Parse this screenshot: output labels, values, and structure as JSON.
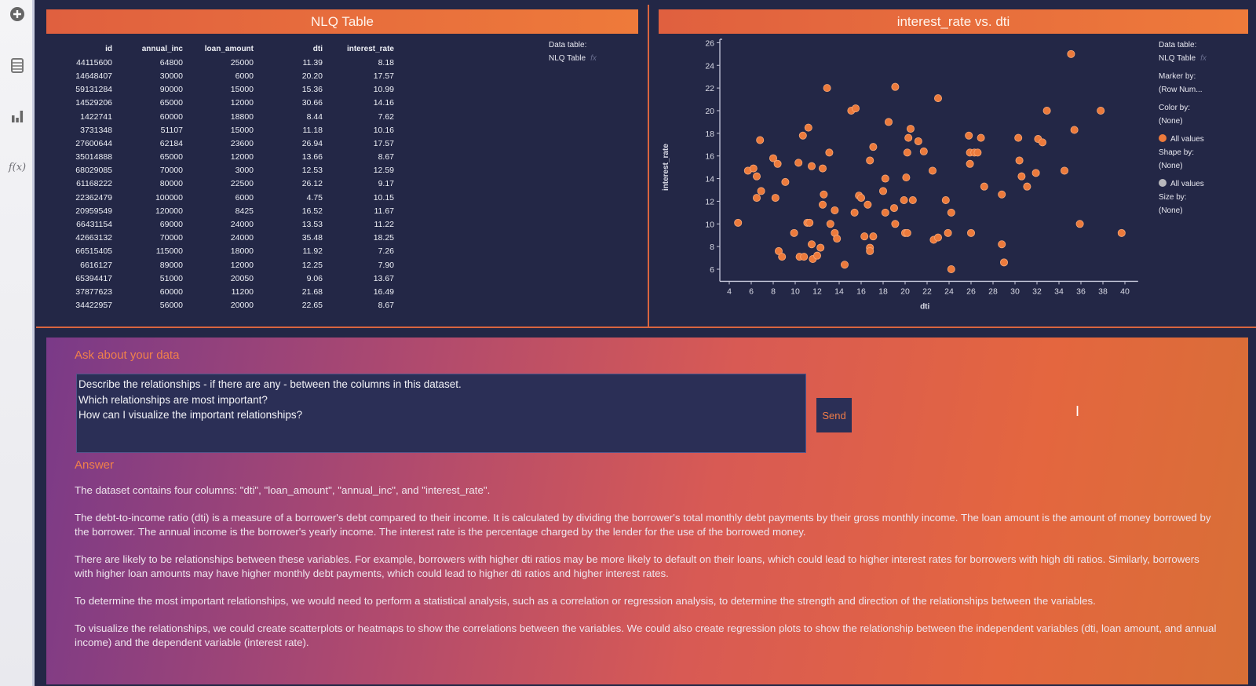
{
  "sidebar": {
    "items": [
      {
        "icon": "add-circle-icon"
      },
      {
        "icon": "table-icon"
      },
      {
        "icon": "bar-chart-icon"
      },
      {
        "icon": "function-icon",
        "label": "f(x)"
      }
    ]
  },
  "table_panel": {
    "title": "NLQ Table",
    "data_table_label": "Data table:",
    "data_table_value": "NLQ Table",
    "fx": "fx",
    "columns": [
      "id",
      "annual_inc",
      "loan_amount",
      "dti",
      "interest_rate"
    ],
    "rows": [
      [
        "44115600",
        "64800",
        "25000",
        "11.39",
        "8.18"
      ],
      [
        "14648407",
        "30000",
        "6000",
        "20.20",
        "17.57"
      ],
      [
        "59131284",
        "90000",
        "15000",
        "15.36",
        "10.99"
      ],
      [
        "14529206",
        "65000",
        "12000",
        "30.66",
        "14.16"
      ],
      [
        "1422741",
        "60000",
        "18800",
        "8.44",
        "7.62"
      ],
      [
        "3731348",
        "51107",
        "15000",
        "11.18",
        "10.16"
      ],
      [
        "27600644",
        "62184",
        "23600",
        "26.94",
        "17.57"
      ],
      [
        "35014888",
        "65000",
        "12000",
        "13.66",
        "8.67"
      ],
      [
        "68029085",
        "70000",
        "3000",
        "12.53",
        "12.59"
      ],
      [
        "61168222",
        "80000",
        "22500",
        "26.12",
        "9.17"
      ],
      [
        "22362479",
        "100000",
        "6000",
        "4.75",
        "10.15"
      ],
      [
        "20959549",
        "120000",
        "8425",
        "16.52",
        "11.67"
      ],
      [
        "66431154",
        "69000",
        "24000",
        "13.53",
        "11.22"
      ],
      [
        "42663132",
        "70000",
        "24000",
        "35.48",
        "18.25"
      ],
      [
        "66515405",
        "115000",
        "18000",
        "11.92",
        "7.26"
      ],
      [
        "6616127",
        "89000",
        "12000",
        "12.25",
        "7.90"
      ],
      [
        "65394417",
        "51000",
        "20050",
        "9.06",
        "13.67"
      ],
      [
        "37877623",
        "60000",
        "11200",
        "21.68",
        "16.49"
      ],
      [
        "34422957",
        "56000",
        "20000",
        "22.65",
        "8.67"
      ]
    ]
  },
  "chart_panel": {
    "title": "interest_rate vs. dti",
    "props": {
      "data_table_label": "Data table:",
      "data_table_value": "NLQ Table",
      "fx": "fx",
      "marker_label": "Marker by:",
      "marker_value": "(Row Num...",
      "color_label": "Color by:",
      "color_value": "(None)",
      "color_legend": "All values",
      "shape_label": "Shape by:",
      "shape_value": "(None)",
      "shape_legend": "All values",
      "size_label": "Size by:",
      "size_value": "(None)"
    }
  },
  "chart_data": {
    "type": "scatter",
    "title": "interest_rate vs. dti",
    "xlabel": "dti",
    "ylabel": "interest_rate",
    "xlim": [
      3,
      41
    ],
    "ylim": [
      5,
      26.5
    ],
    "xticks": [
      4,
      6,
      8,
      10,
      12,
      14,
      16,
      18,
      20,
      22,
      24,
      26,
      28,
      30,
      32,
      34,
      36,
      38,
      40
    ],
    "yticks": [
      6,
      8,
      10,
      12,
      14,
      16,
      18,
      20,
      22,
      24,
      26
    ],
    "marker_color": "#ec7a3c",
    "grid": false,
    "points": [
      [
        4.8,
        10.1
      ],
      [
        5.7,
        14.7
      ],
      [
        6.2,
        14.9
      ],
      [
        6.5,
        14.2
      ],
      [
        6.8,
        17.4
      ],
      [
        6.9,
        12.9
      ],
      [
        6.5,
        12.3
      ],
      [
        8.0,
        15.8
      ],
      [
        8.4,
        15.3
      ],
      [
        8.2,
        12.3
      ],
      [
        9.1,
        13.7
      ],
      [
        8.5,
        7.6
      ],
      [
        8.8,
        7.1
      ],
      [
        9.9,
        9.2
      ],
      [
        10.3,
        15.4
      ],
      [
        10.7,
        17.8
      ],
      [
        11.2,
        18.5
      ],
      [
        11.5,
        15.1
      ],
      [
        10.4,
        7.1
      ],
      [
        10.8,
        7.1
      ],
      [
        11.1,
        10.1
      ],
      [
        11.3,
        10.1
      ],
      [
        11.5,
        8.2
      ],
      [
        11.6,
        6.9
      ],
      [
        12.0,
        7.2
      ],
      [
        12.3,
        7.9
      ],
      [
        12.5,
        14.9
      ],
      [
        12.6,
        12.6
      ],
      [
        12.5,
        11.7
      ],
      [
        12.9,
        22.0
      ],
      [
        13.1,
        16.3
      ],
      [
        13.2,
        10.0
      ],
      [
        13.6,
        11.2
      ],
      [
        13.6,
        9.2
      ],
      [
        13.8,
        8.7
      ],
      [
        14.5,
        6.4
      ],
      [
        15.1,
        20.0
      ],
      [
        15.5,
        20.2
      ],
      [
        15.4,
        11.0
      ],
      [
        15.8,
        12.5
      ],
      [
        16.0,
        12.3
      ],
      [
        16.3,
        8.9
      ],
      [
        16.8,
        15.6
      ],
      [
        17.1,
        16.8
      ],
      [
        16.6,
        11.7
      ],
      [
        17.1,
        8.9
      ],
      [
        16.8,
        7.9
      ],
      [
        16.8,
        7.6
      ],
      [
        18.0,
        12.9
      ],
      [
        18.2,
        14.0
      ],
      [
        18.2,
        11.0
      ],
      [
        18.5,
        19.0
      ],
      [
        19.1,
        22.1
      ],
      [
        19.1,
        10.0
      ],
      [
        19.0,
        11.4
      ],
      [
        19.9,
        12.1
      ],
      [
        20.1,
        14.1
      ],
      [
        20.2,
        16.3
      ],
      [
        20.3,
        17.6
      ],
      [
        20.5,
        18.4
      ],
      [
        20.0,
        9.2
      ],
      [
        20.2,
        9.2
      ],
      [
        20.7,
        12.1
      ],
      [
        21.2,
        17.3
      ],
      [
        21.7,
        16.4
      ],
      [
        22.5,
        14.7
      ],
      [
        23.0,
        21.1
      ],
      [
        22.6,
        8.6
      ],
      [
        23.0,
        8.8
      ],
      [
        23.7,
        12.1
      ],
      [
        23.9,
        9.2
      ],
      [
        24.2,
        11.0
      ],
      [
        24.2,
        6.0
      ],
      [
        25.8,
        17.8
      ],
      [
        25.9,
        16.3
      ],
      [
        26.3,
        16.3
      ],
      [
        26.6,
        16.3
      ],
      [
        25.9,
        15.3
      ],
      [
        26.0,
        9.2
      ],
      [
        26.9,
        17.6
      ],
      [
        27.2,
        13.3
      ],
      [
        28.8,
        12.6
      ],
      [
        28.8,
        8.2
      ],
      [
        29.0,
        6.6
      ],
      [
        30.3,
        17.6
      ],
      [
        30.4,
        15.6
      ],
      [
        30.6,
        14.2
      ],
      [
        31.1,
        13.3
      ],
      [
        31.9,
        14.5
      ],
      [
        32.1,
        17.5
      ],
      [
        32.5,
        17.2
      ],
      [
        32.9,
        20.0
      ],
      [
        34.5,
        14.7
      ],
      [
        35.1,
        25.0
      ],
      [
        35.4,
        18.3
      ],
      [
        35.9,
        10.0
      ],
      [
        37.8,
        20.0
      ],
      [
        39.7,
        9.2
      ]
    ]
  },
  "ask": {
    "label": "Ask about your data",
    "question": "Describe the relationships - if there are any - between the columns in this dataset.\nWhich relationships are most important?\nHow can I visualize the important relationships?",
    "send_label": "Send",
    "answer_label": "Answer",
    "answer_paragraphs": [
      "The dataset contains four columns: \"dti\", \"loan_amount\", \"annual_inc\", and \"interest_rate\".",
      "The debt-to-income ratio (dti) is a measure of a borrower's debt compared to their income. It is calculated by dividing the borrower's total monthly debt payments by their gross monthly income. The loan amount is the amount of money borrowed by the borrower. The annual income is the borrower's yearly income. The interest rate is the percentage charged by the lender for the use of the borrowed money.",
      "There are likely to be relationships between these variables. For example, borrowers with higher dti ratios may be more likely to default on their loans, which could lead to higher interest rates for borrowers with high dti ratios. Similarly, borrowers with higher loan amounts may have higher monthly debt payments, which could lead to higher dti ratios and higher interest rates.",
      "To determine the most important relationships, we would need to perform a statistical analysis, such as a correlation or regression analysis, to determine the strength and direction of the relationships between the variables.",
      "To visualize the relationships, we could create scatterplots or heatmaps to show the correlations between the variables. We could also create regression plots to show the relationship between the independent variables (dti, loan amount, and annual income) and the dependent variable (interest rate)."
    ]
  }
}
